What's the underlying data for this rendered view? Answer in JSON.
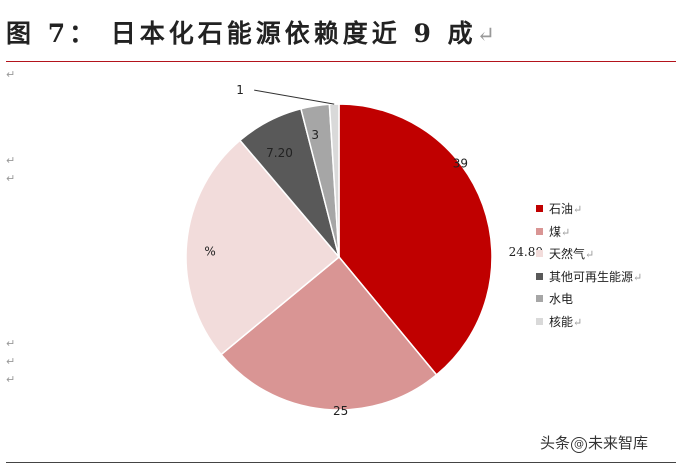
{
  "title": "图 7： 日本化石能源依赖度近 9 成",
  "return_mark": "↵",
  "watermark": {
    "prefix": "头条",
    "at": "@",
    "name": "未来智库"
  },
  "colors": {
    "oil": "#c00000",
    "coal": "#d99594",
    "gas": "#f2dcdb",
    "other_renewables": "#595959",
    "hydro": "#a6a6a6",
    "nuclear": "#d9d9d9",
    "rule": "#b3131b"
  },
  "chart_data": {
    "type": "pie",
    "title": "",
    "slices": [
      {
        "key": "oil",
        "name": "石油",
        "value": 39,
        "label": "39"
      },
      {
        "key": "coal",
        "name": "煤",
        "value": 25,
        "label": "25"
      },
      {
        "key": "gas",
        "name": "天然气",
        "value": 24.8,
        "label": "%"
      },
      {
        "key": "other_renewables",
        "name": "其他可再生能源",
        "value": 7.2,
        "label": "7.20"
      },
      {
        "key": "hydro",
        "name": "水电",
        "value": 3,
        "label": "3"
      },
      {
        "key": "nuclear",
        "name": "核能",
        "value": 1,
        "label": "1"
      }
    ],
    "legend_prefix_gas": "24.80",
    "legend_position": "right"
  }
}
